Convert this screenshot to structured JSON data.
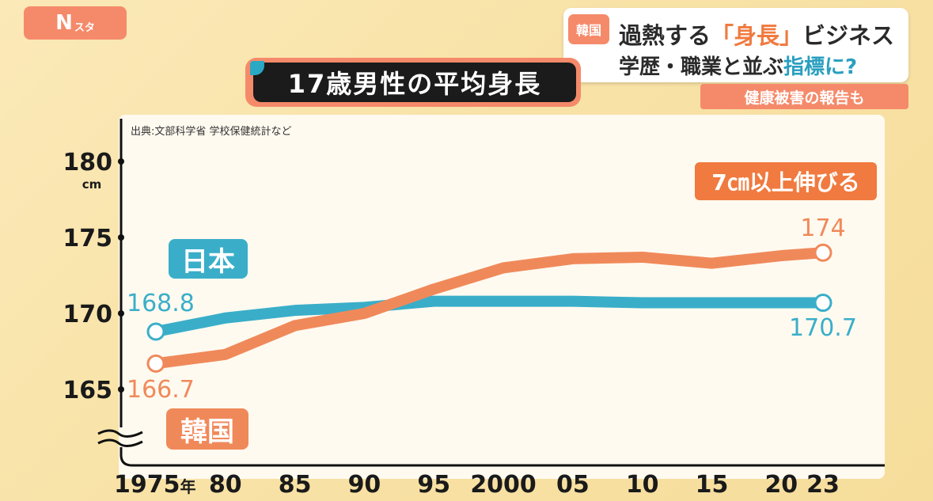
{
  "logo": {
    "main": "N",
    "sub": "スタ"
  },
  "headline": {
    "tag": "韓国",
    "line1_pre": "過熱する",
    "line1_accent": "「身長」",
    "line1_post": "ビジネス",
    "line2_pre": "学歴・職業と並ぶ",
    "line2_accent": "指標に?",
    "sub": "健康被害の報告も"
  },
  "chart_title": "17歳男性の平均身長",
  "source": "出典:文部科学省 学校保健統計など",
  "callout": "7㎝以上伸びる",
  "colors": {
    "japan": "#3aaec9",
    "korea": "#f0895a",
    "accent": "#f58a6a"
  },
  "chart_data": {
    "type": "line",
    "title": "17歳男性の平均身長",
    "xlabel": "",
    "ylabel": "cm",
    "ylim": [
      160,
      182
    ],
    "yticks": [
      165,
      170,
      175,
      180
    ],
    "ytick_labels": [
      "165",
      "170",
      "175",
      "180"
    ],
    "y_unit": "cm",
    "axis_break": true,
    "x": [
      1975,
      1980,
      1985,
      1990,
      1995,
      2000,
      2005,
      2010,
      2015,
      2020,
      2023
    ],
    "x_tick_labels": [
      "1975年",
      "80",
      "85",
      "90",
      "95",
      "2000",
      "05",
      "10",
      "15",
      "20",
      "23"
    ],
    "series": [
      {
        "name": "日本",
        "values": [
          168.8,
          169.7,
          170.2,
          170.4,
          170.8,
          170.8,
          170.8,
          170.7,
          170.7,
          170.7,
          170.7
        ],
        "start_label": "168.8",
        "end_label": "170.7"
      },
      {
        "name": "韓国",
        "values": [
          166.7,
          167.3,
          169.2,
          170.0,
          171.6,
          173.0,
          173.6,
          173.7,
          173.3,
          173.8,
          174.0
        ],
        "start_label": "166.7",
        "end_label": "174"
      }
    ]
  }
}
